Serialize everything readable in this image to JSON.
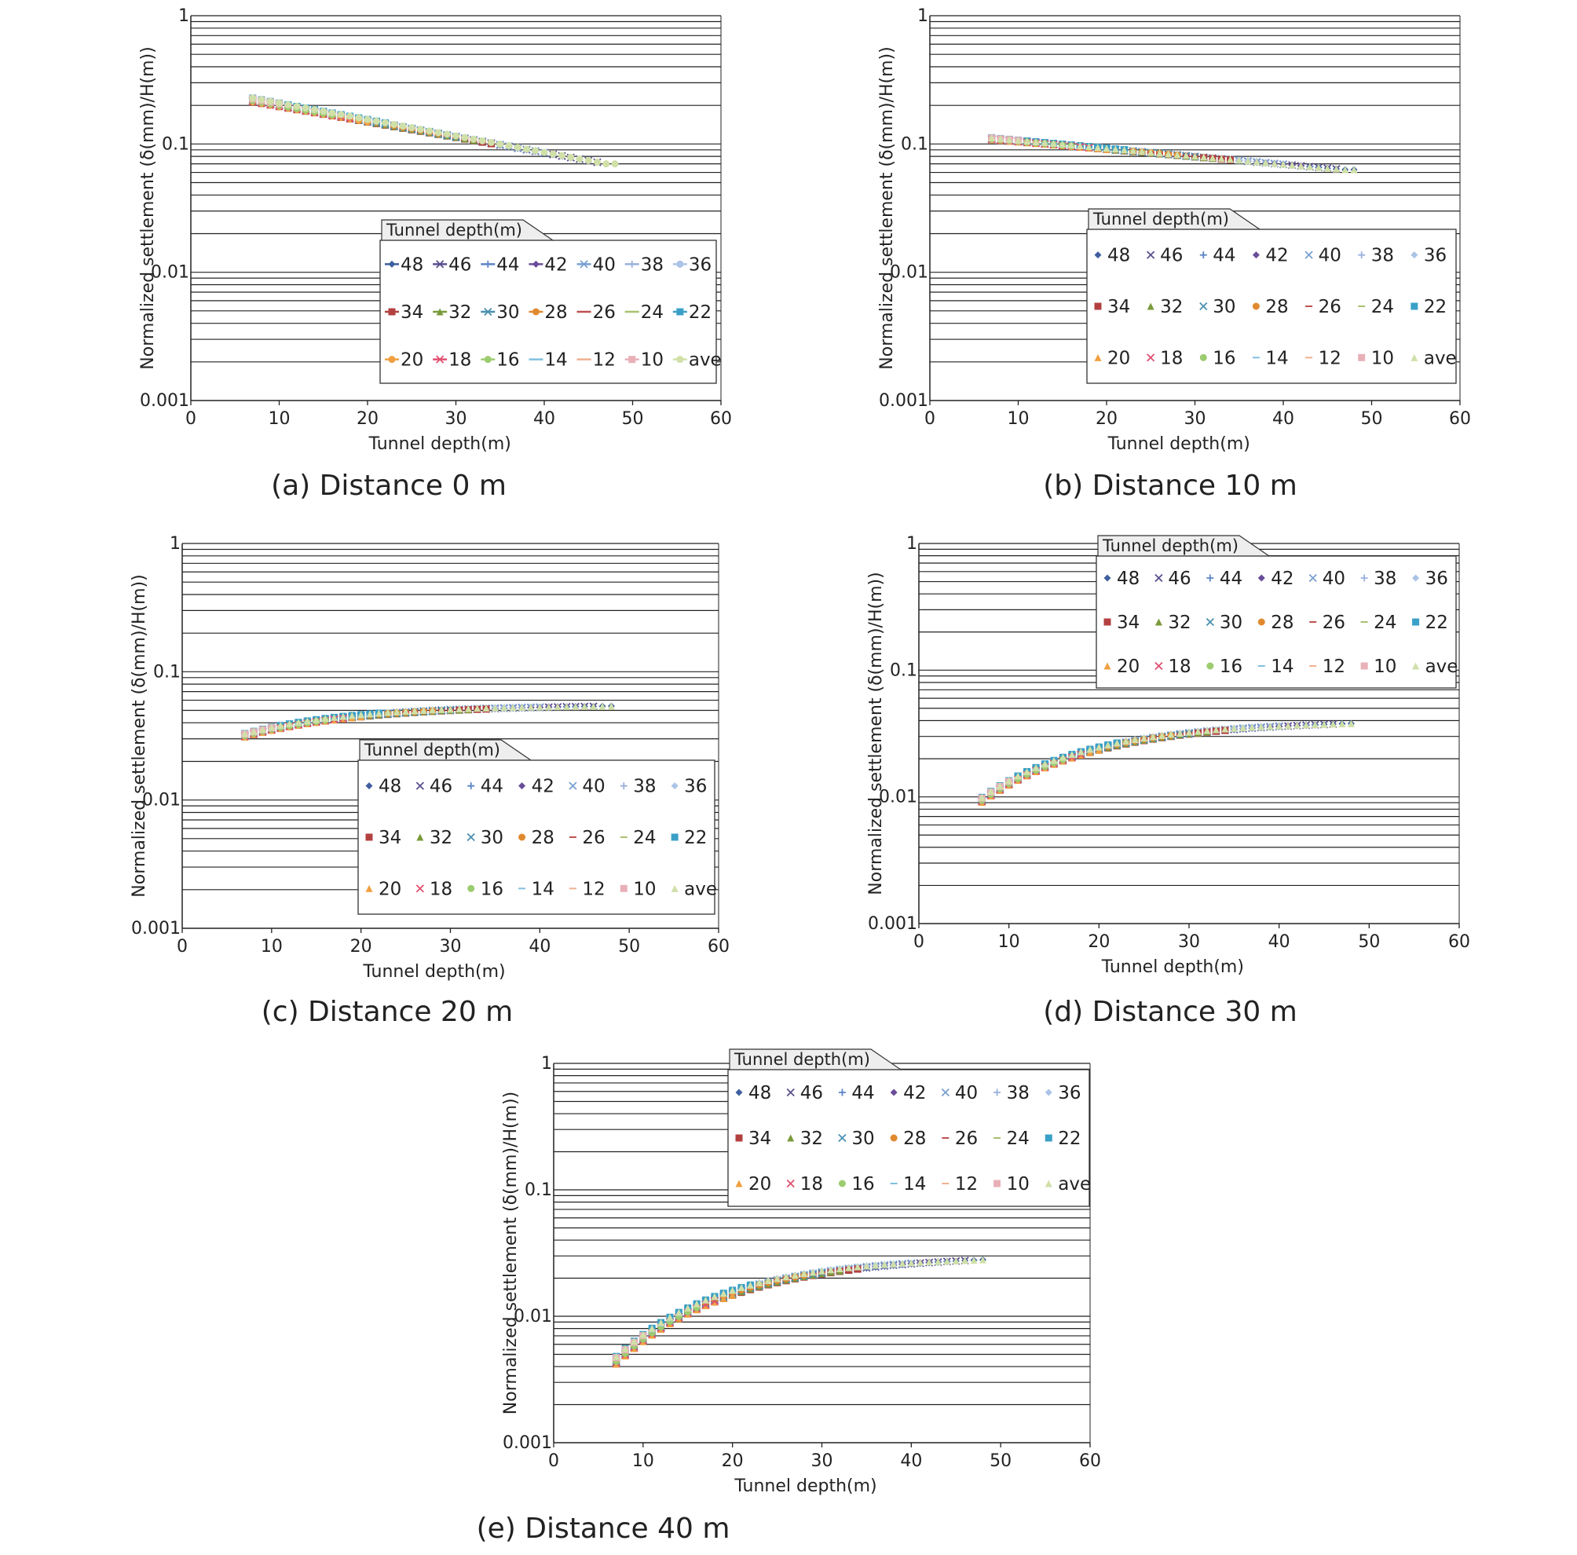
{
  "legend_title": "Tunnel depth(m)",
  "legend_labels": [
    "48",
    "46",
    "44",
    "42",
    "40",
    "38",
    "36",
    "34",
    "32",
    "30",
    "28",
    "26",
    "24",
    "22",
    "20",
    "18",
    "16",
    "14",
    "12",
    "10",
    "ave"
  ],
  "series_colors": [
    "#3f5fa0",
    "#5b4f8e",
    "#5b84c6",
    "#6a4c9a",
    "#7aa0d2",
    "#9ab0dd",
    "#aac3e6",
    "#b34040",
    "#7a9a3a",
    "#4a90b0",
    "#e08a30",
    "#c05050",
    "#a8c070",
    "#3aa0c8",
    "#f0a040",
    "#e05070",
    "#9ccc70",
    "#80c0e0",
    "#f0b090",
    "#e8b0b8",
    "#d0e0a8"
  ],
  "legend_markers_a": [
    "line-diamond",
    "line-x",
    "line-plus",
    "line-diamond",
    "line-x",
    "line-plus",
    "line-circle",
    "line-square",
    "line-triangle",
    "line-x",
    "line-circle",
    "line",
    "line",
    "line-square",
    "line-circle",
    "line-x",
    "line-circle",
    "line",
    "line",
    "line-square",
    "line-circle"
  ],
  "legend_markers_b": [
    "diamond",
    "x",
    "plus",
    "diamond",
    "x",
    "plus",
    "diamond",
    "square",
    "triangle",
    "x",
    "circle",
    "dash",
    "dash",
    "square",
    "triangle",
    "x",
    "circle",
    "dash",
    "dash",
    "square",
    "triangle"
  ],
  "chart_data": [
    {
      "id": "a",
      "type": "scatter",
      "caption": "(a) Distance 0 m",
      "xlabel": "Tunnel depth(m)",
      "ylabel": "Normalized settlement (δ(mm)/H(m))",
      "xlim": [
        0,
        60
      ],
      "ylim": [
        0.001,
        1
      ],
      "yscale": "log",
      "xticks": [
        0,
        10,
        20,
        30,
        40,
        50,
        60
      ],
      "yticks": [
        0.001,
        0.01,
        0.1,
        1
      ],
      "ytick_labels": [
        "0.001",
        "0.01",
        "0.1",
        "1"
      ],
      "curve": {
        "y_start": 0.22,
        "y_end": 0.07,
        "spread": 0.08,
        "shape": "power",
        "exponent": 1.0
      },
      "legend_position": "bottom-right",
      "legend_style": "line"
    },
    {
      "id": "b",
      "type": "scatter",
      "caption": "(b) Distance 10 m",
      "xlabel": "Tunnel depth(m)",
      "ylabel": "Normalized settlement (δ(mm)/H(m))",
      "xlim": [
        0,
        60
      ],
      "ylim": [
        0.001,
        1
      ],
      "yscale": "log",
      "xticks": [
        0,
        10,
        20,
        30,
        40,
        50,
        60
      ],
      "yticks": [
        0.001,
        0.01,
        0.1,
        1
      ],
      "ytick_labels": [
        "0.001",
        "0.01",
        "0.1",
        "1"
      ],
      "curve": {
        "y_start": 0.11,
        "y_end": 0.063,
        "spread": 0.04,
        "shape": "power",
        "exponent": 1.0
      },
      "legend_position": "bottom-right",
      "legend_style": "marker"
    },
    {
      "id": "c",
      "type": "scatter",
      "caption": "(c) Distance 20 m",
      "xlabel": "Tunnel depth(m)",
      "ylabel": "Normalized settlement (δ(mm)/H(m))",
      "xlim": [
        0,
        60
      ],
      "ylim": [
        0.001,
        1
      ],
      "yscale": "log",
      "xticks": [
        0,
        10,
        20,
        30,
        40,
        50,
        60
      ],
      "yticks": [
        0.001,
        0.01,
        0.1,
        1
      ],
      "ytick_labels": [
        "0.001",
        "0.01",
        "0.1",
        "1"
      ],
      "curve": {
        "y_start": 0.032,
        "y_end": 0.052,
        "spread": 0.07,
        "shape": "rise",
        "peak": 0.055
      },
      "legend_position": "bottom-right",
      "legend_style": "marker"
    },
    {
      "id": "d",
      "type": "scatter",
      "caption": "(d) Distance 30 m",
      "xlabel": "Tunnel depth(m)",
      "ylabel": "Normalized settlement (δ(mm)/H(m))",
      "xlim": [
        0,
        60
      ],
      "ylim": [
        0.001,
        1
      ],
      "yscale": "log",
      "xticks": [
        0,
        10,
        20,
        30,
        40,
        50,
        60
      ],
      "yticks": [
        0.001,
        0.01,
        0.1,
        1
      ],
      "ytick_labels": [
        "0.001",
        "0.01",
        "0.1",
        "1"
      ],
      "curve": {
        "y_start": 0.0095,
        "y_end": 0.04,
        "spread": 0.1,
        "shape": "rise",
        "peak": 0.04
      },
      "legend_position": "top-right",
      "legend_style": "marker"
    },
    {
      "id": "e",
      "type": "scatter",
      "caption": "(e) Distance 40 m",
      "xlabel": "Tunnel depth(m)",
      "ylabel": "Normalized settlement (δ(mm)/H(m))",
      "xlim": [
        0,
        60
      ],
      "ylim": [
        0.001,
        1
      ],
      "yscale": "log",
      "xticks": [
        0,
        10,
        20,
        30,
        40,
        50,
        60
      ],
      "yticks": [
        0.001,
        0.01,
        0.1,
        1
      ],
      "ytick_labels": [
        "0.001",
        "0.01",
        "0.1",
        "1"
      ],
      "curve": {
        "y_start": 0.0045,
        "y_end": 0.03,
        "spread": 0.16,
        "shape": "rise",
        "peak": 0.03
      },
      "legend_position": "top-right",
      "legend_style": "marker"
    }
  ]
}
